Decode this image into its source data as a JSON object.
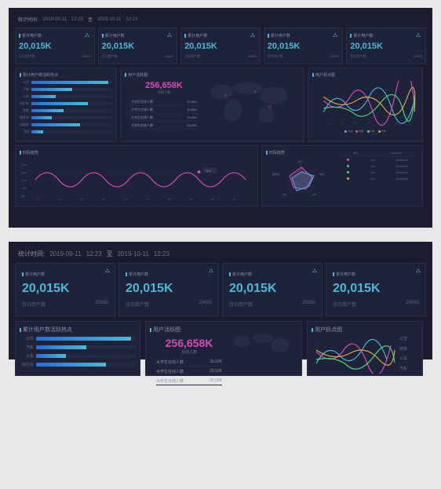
{
  "header": {
    "label": "统计时间:",
    "date1": "2019-09-11",
    "time1": "12:23",
    "to": "至",
    "date2": "2019-10-11",
    "time2": "12:23"
  },
  "cards": [
    {
      "title": "累计用户数",
      "value": "20,015K",
      "sub1": "日均用户数",
      "sub2": "25685"
    },
    {
      "title": "累计用户数",
      "value": "20,015K",
      "sub1": "日均用户数",
      "sub2": "25685"
    },
    {
      "title": "累计用户数",
      "value": "20,015K",
      "sub1": "日均用户数",
      "sub2": "25685"
    },
    {
      "title": "累计用户数",
      "value": "20,015K",
      "sub1": "日均用户数",
      "sub2": "25685"
    },
    {
      "title": "累计用户数",
      "value": "20,015K",
      "sub1": "日均用户数",
      "sub2": "25685"
    }
  ],
  "bars": {
    "title": "累计用户数活跃热点",
    "items": [
      {
        "label": "公交",
        "pct": 95
      },
      {
        "label": "汽车",
        "pct": 50
      },
      {
        "label": "火车",
        "pct": 30
      },
      {
        "label": "自行车",
        "pct": 70
      },
      {
        "label": "地铁",
        "pct": 40
      },
      {
        "label": "私家车",
        "pct": 25
      },
      {
        "label": "出租车",
        "pct": 60
      },
      {
        "label": "飞机",
        "pct": 15
      }
    ],
    "gradient_from": "#2a6bd8",
    "gradient_to": "#4ab8d8"
  },
  "map": {
    "title": "用户活跃图",
    "value": "256,658K",
    "sub": "在线人数",
    "lines": [
      {
        "label": "大学生在线人数",
        "val": "25,52K"
      },
      {
        "label": "大学生在线人数",
        "val": "25,52K"
      },
      {
        "label": "大学生在线人数",
        "val": "25,52K"
      },
      {
        "label": "大学生在线人数",
        "val": "25,52K"
      }
    ],
    "value_color": "#d84ab8"
  },
  "scatter": {
    "title": "用户跃点图",
    "legend": [
      {
        "label": "公交",
        "color": "#4ab8d8"
      },
      {
        "label": "地铁",
        "color": "#d84ab8"
      },
      {
        "label": "火车",
        "color": "#4ad87a"
      },
      {
        "label": "汽车",
        "color": "#d8a84a"
      }
    ],
    "side_labels": [
      "公交",
      "地铁",
      "火车",
      "汽车"
    ],
    "xticks": [
      "1",
      "2",
      "3",
      "4",
      "5",
      "6",
      "7"
    ],
    "line_width": 1.2
  },
  "trend": {
    "title": "时段趋势",
    "yticks": [
      "250K",
      "200K",
      "150K",
      "100K",
      "50K"
    ],
    "xticks": [
      "12",
      "13",
      "14",
      "15",
      "16",
      "17",
      "18",
      "19",
      "20",
      "21"
    ],
    "badge": "11%",
    "wave_color": "#d84ab8",
    "wave_width": 1.2
  },
  "radar": {
    "title": "时段趋势",
    "axes": [
      "公交",
      "地铁",
      "火车",
      "汽车",
      "私家车"
    ],
    "series": [
      {
        "color": "#d84ab8"
      },
      {
        "color": "#4ab8d8"
      },
      {
        "color": "#4ad87a"
      }
    ],
    "table": {
      "headers": [
        "本月",
        "2019/02/18"
      ],
      "rows": [
        {
          "color": "#d84ab8",
          "c1": "-23%",
          "c2": "2019/02/18"
        },
        {
          "color": "#4ab8d8",
          "c1": "-23%",
          "c2": "2019/02/18"
        },
        {
          "color": "#4ad87a",
          "c1": "-23%",
          "c2": "2019/02/18"
        },
        {
          "color": "#d8a84a",
          "c1": "-23%",
          "c2": "2019/02/18"
        }
      ]
    }
  },
  "colors": {
    "bg": "#1a1d2e",
    "panel": "#1f2339",
    "border": "#2a2f48",
    "text": "#8a8fa8",
    "accent": "#4ab8d8"
  }
}
